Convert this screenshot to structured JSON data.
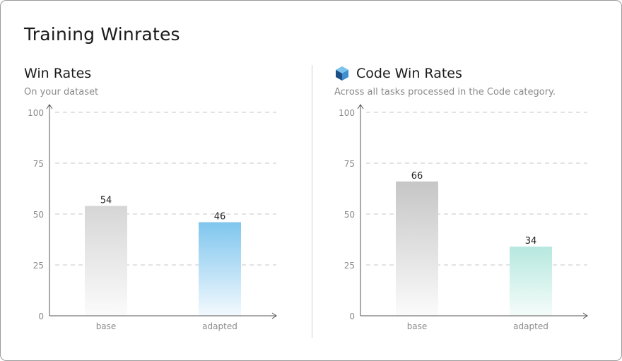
{
  "page": {
    "title": "Training Winrates"
  },
  "panels": [
    {
      "title": "Win Rates",
      "subtitle": "On your dataset",
      "icon": null,
      "bar_colors": [
        {
          "top": "#d6d6d6",
          "bottom": "#fbfbfb"
        },
        {
          "top": "#7fc6ee",
          "bottom": "#f3f9fe"
        }
      ]
    },
    {
      "title": "Code Win Rates",
      "subtitle": "Across all tasks processed in the Code category.",
      "icon": "cube-icon",
      "bar_colors": [
        {
          "top": "#c6c6c6",
          "bottom": "#fbfbfb"
        },
        {
          "top": "#b6e8df",
          "bottom": "#f5fcfa"
        }
      ]
    }
  ],
  "chart_data": [
    {
      "type": "bar",
      "title": "Win Rates",
      "categories": [
        "base",
        "adapted"
      ],
      "values": [
        54,
        46
      ],
      "ylim": [
        0,
        100
      ],
      "yticks": [
        0,
        25,
        50,
        75,
        100
      ],
      "grid": true
    },
    {
      "type": "bar",
      "title": "Code Win Rates",
      "categories": [
        "base",
        "adapted"
      ],
      "values": [
        66,
        34
      ],
      "ylim": [
        0,
        100
      ],
      "yticks": [
        0,
        25,
        50,
        75,
        100
      ],
      "grid": true
    }
  ]
}
